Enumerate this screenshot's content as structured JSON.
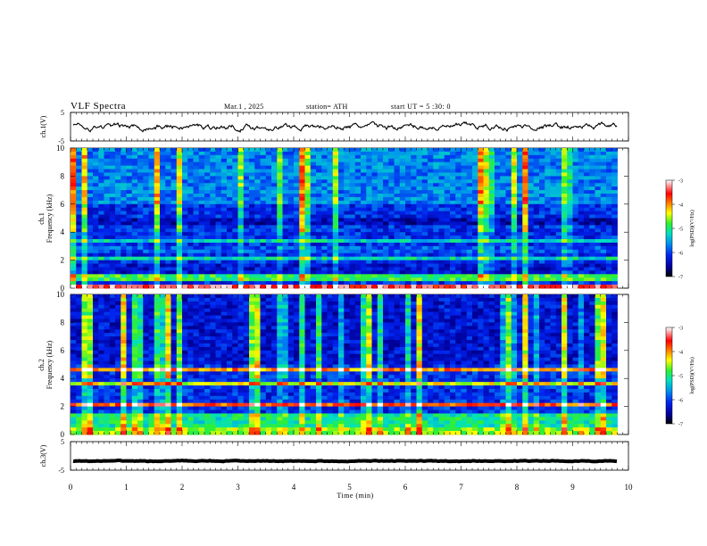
{
  "header": {
    "title": "VLF Spectra",
    "date": "Mar.1 , 2025",
    "station": "station= ATH",
    "start": "start UT = 5 :30: 0"
  },
  "colors": {
    "spectral_stops": [
      "#000000",
      "#00009a",
      "#0022ee",
      "#0090f0",
      "#00e0c0",
      "#30f030",
      "#ffff00",
      "#ff8000",
      "#ff0000",
      "#ffffff"
    ],
    "trace": "#000000"
  },
  "chart_data": [
    {
      "type": "line",
      "id": "ch1",
      "ylabel": "ch.1(V)",
      "ylim": [
        -5,
        5
      ],
      "yticks": [
        "5",
        "-5"
      ],
      "xlim": [
        0,
        10
      ],
      "series": [
        {
          "values_description_free": true,
          "level": 0.0,
          "amplitude": 1.2
        }
      ]
    },
    {
      "type": "heatmap",
      "id": "ch1-spectrogram",
      "ylabel_channel": "ch.1",
      "ylabel": "Frequency (kHz)",
      "ylim": [
        0,
        10
      ],
      "yticks": [
        "0",
        "2",
        "4",
        "6",
        "8",
        "10"
      ],
      "xlim": [
        0,
        10
      ],
      "data_end_min": 9.8,
      "colorbar": {
        "label": "log(PSD)(V²/Hz)",
        "range": [
          -7,
          -3
        ],
        "ticks": [
          "-3",
          "-4",
          "-5",
          "-6",
          "-7"
        ]
      },
      "bands": [
        {
          "f": [
            0.0,
            0.25
          ],
          "v": -3.4
        },
        {
          "f": [
            0.6,
            0.9
          ],
          "v": -4.9
        },
        {
          "f": [
            1.0,
            1.8
          ],
          "v": -6.3
        },
        {
          "f": [
            2.0,
            2.2
          ],
          "v": -5.2
        },
        {
          "f": [
            2.6,
            3.1
          ],
          "v": -5.9
        },
        {
          "f": [
            3.2,
            3.4
          ],
          "v": -5.3
        },
        {
          "f": [
            4.4,
            4.9
          ],
          "v": -6.4
        },
        {
          "f": [
            6.0,
            10.0
          ],
          "v": -5.7
        }
      ]
    },
    {
      "type": "heatmap",
      "id": "ch2-spectrogram",
      "ylabel_channel": "ch.2",
      "ylabel": "Frequency (kHz)",
      "ylim": [
        0,
        10
      ],
      "yticks": [
        "0",
        "2",
        "4",
        "6",
        "8",
        "10"
      ],
      "xlim": [
        0,
        10
      ],
      "data_end_min": 9.8,
      "colorbar": {
        "label": "log(PSD)(V²/Hz)",
        "range": [
          -7,
          -3
        ],
        "ticks": [
          "-3",
          "-4",
          "-5",
          "-6",
          "-7"
        ]
      },
      "bands": [
        {
          "f": [
            0.0,
            0.6
          ],
          "v": -4.6
        },
        {
          "f": [
            0.6,
            1.6
          ],
          "v": -5.1
        },
        {
          "f": [
            1.9,
            2.2
          ],
          "v": -3.8
        },
        {
          "f": [
            3.4,
            3.7
          ],
          "v": -4.4
        },
        {
          "f": [
            4.5,
            4.7
          ],
          "v": -4.0
        },
        {
          "f": [
            5.0,
            10.0
          ],
          "v": -6.3
        }
      ]
    },
    {
      "type": "line",
      "id": "ch3",
      "ylabel": "ch.3(V)",
      "ylim": [
        -5,
        5
      ],
      "yticks": [
        "5",
        "-5"
      ],
      "xlim": [
        0,
        10
      ],
      "series": [
        {
          "level": -1.8,
          "amplitude": 0.15
        }
      ]
    }
  ],
  "xaxis": {
    "label": "Time (min)",
    "ticks": [
      "0",
      "1",
      "2",
      "3",
      "4",
      "5",
      "6",
      "7",
      "8",
      "9",
      "10"
    ]
  }
}
